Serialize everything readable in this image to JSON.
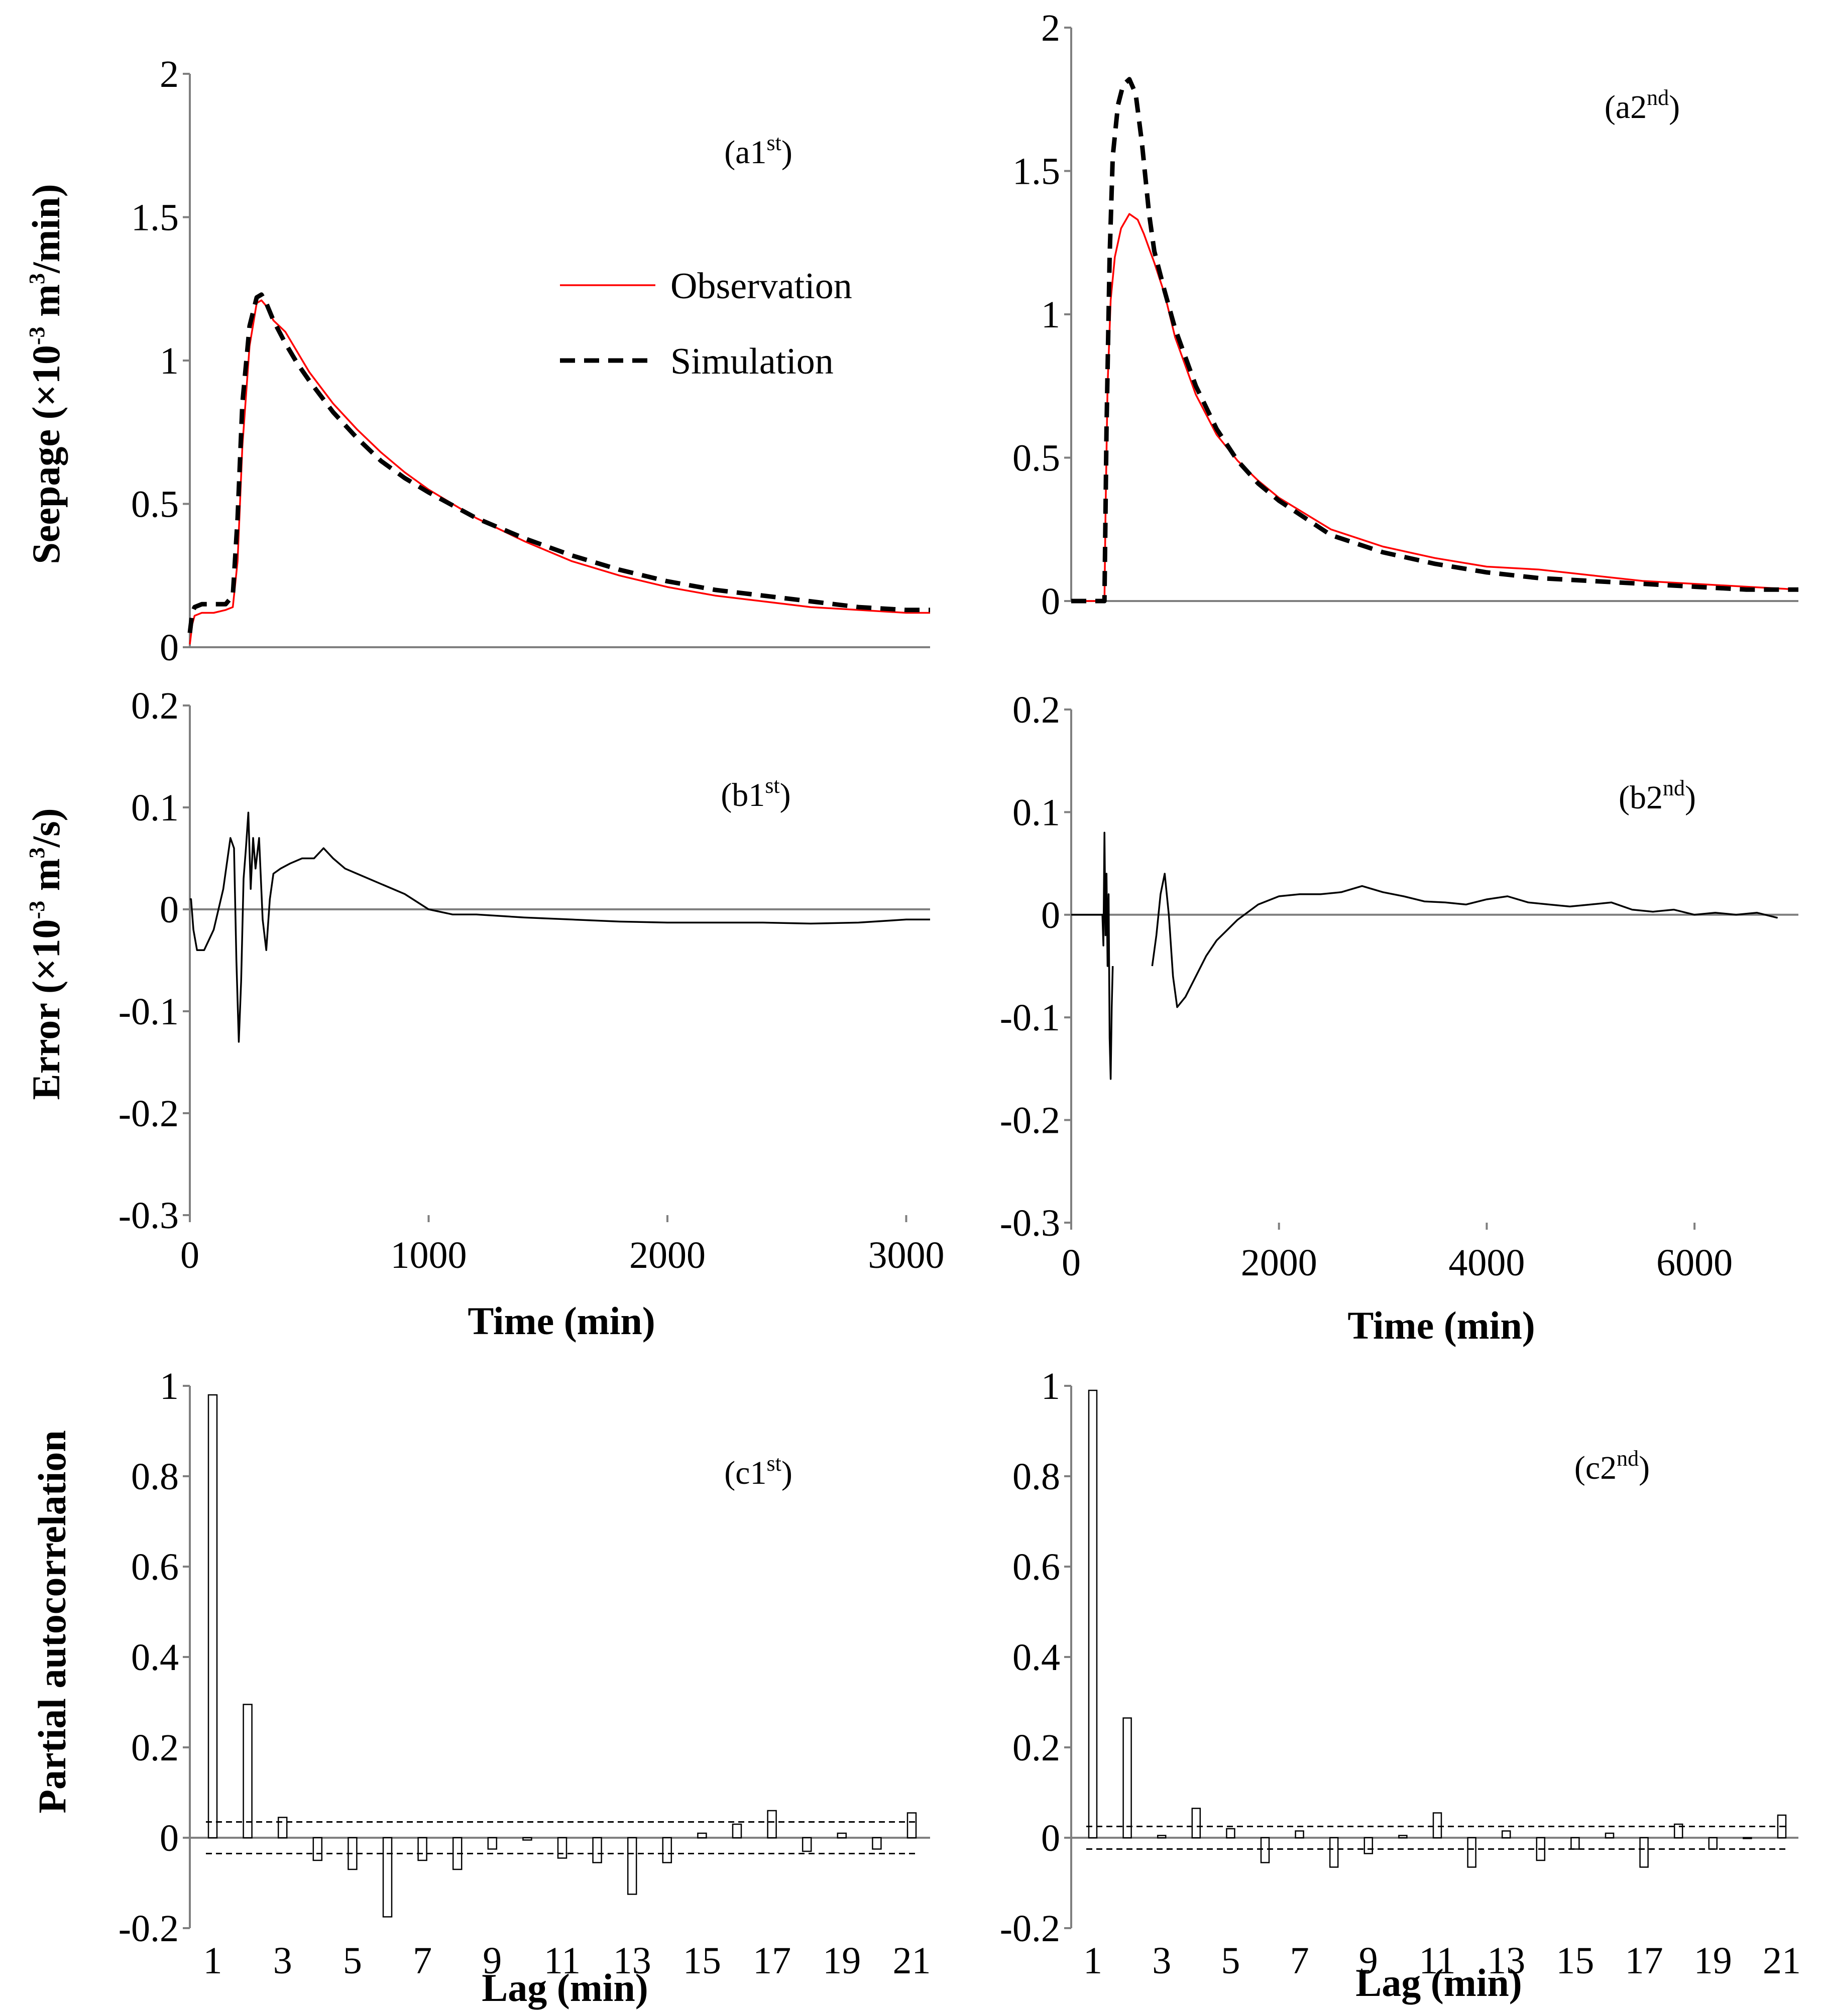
{
  "figure": {
    "ylabels": {
      "seepage": [
        "Seepage (×10",
        "-3",
        " m",
        "3",
        "/min)"
      ],
      "error": [
        "Error (×10",
        "-3",
        " m",
        "3",
        "/s)"
      ],
      "pacf": "Partial autocorrelation"
    },
    "xlabels": {
      "time": "Time (min)",
      "lag": "Lag (min)"
    },
    "colors": {
      "observation": "#ff0000",
      "simulation": "#000000",
      "error": "#000000",
      "axis": "#7f7f7f"
    }
  },
  "chart_data": [
    {
      "id": "a1",
      "type": "line",
      "panel_label": [
        "(a1",
        "st",
        ")"
      ],
      "xlabel": "",
      "ylabel": "Seepage (×10-3 m3/min)",
      "xlim": [
        0,
        3100
      ],
      "ylim": [
        0,
        2
      ],
      "yticks": [
        "0",
        "0.5",
        "1",
        "1.5",
        "2"
      ],
      "xticks": [],
      "legend": {
        "placement": "top-right",
        "entries": [
          "Observation",
          "Simulation"
        ]
      },
      "series": [
        {
          "name": "Observation",
          "style": "solid-red",
          "x": [
            0,
            10,
            20,
            50,
            100,
            150,
            180,
            200,
            220,
            250,
            280,
            300,
            320,
            350,
            400,
            450,
            500,
            600,
            700,
            800,
            900,
            1000,
            1200,
            1400,
            1600,
            1800,
            2000,
            2200,
            2400,
            2600,
            2800,
            3000,
            3100
          ],
          "y": [
            0.01,
            0.08,
            0.11,
            0.12,
            0.12,
            0.13,
            0.14,
            0.3,
            0.7,
            1.05,
            1.2,
            1.21,
            1.19,
            1.14,
            1.1,
            1.03,
            0.96,
            0.85,
            0.76,
            0.68,
            0.61,
            0.55,
            0.45,
            0.37,
            0.3,
            0.25,
            0.21,
            0.18,
            0.16,
            0.14,
            0.13,
            0.12,
            0.12
          ]
        },
        {
          "name": "Simulation",
          "style": "dashed-black",
          "x": [
            0,
            10,
            20,
            50,
            100,
            150,
            180,
            200,
            220,
            250,
            280,
            300,
            320,
            350,
            400,
            450,
            500,
            600,
            700,
            800,
            900,
            1000,
            1200,
            1400,
            1600,
            1800,
            2000,
            2200,
            2400,
            2600,
            2800,
            3000,
            3100
          ],
          "y": [
            0.05,
            0.12,
            0.14,
            0.15,
            0.15,
            0.15,
            0.18,
            0.45,
            0.85,
            1.12,
            1.22,
            1.23,
            1.2,
            1.14,
            1.06,
            0.99,
            0.93,
            0.82,
            0.73,
            0.65,
            0.59,
            0.54,
            0.45,
            0.38,
            0.32,
            0.27,
            0.23,
            0.2,
            0.18,
            0.16,
            0.14,
            0.13,
            0.13
          ]
        }
      ]
    },
    {
      "id": "a2",
      "type": "line",
      "panel_label": [
        "(a2",
        "nd",
        ")"
      ],
      "xlabel": "",
      "ylabel": "",
      "xlim": [
        0,
        7000
      ],
      "ylim": [
        0,
        2
      ],
      "yticks": [
        "0",
        "0.5",
        "1",
        "1.5",
        "2"
      ],
      "xticks": [],
      "series": [
        {
          "name": "Observation",
          "style": "solid-red",
          "x": [
            0,
            300,
            320,
            330,
            350,
            380,
            420,
            480,
            560,
            640,
            700,
            800,
            900,
            1000,
            1200,
            1400,
            1600,
            1800,
            2000,
            2500,
            3000,
            3500,
            4000,
            4500,
            5000,
            5500,
            6000,
            6500,
            7000
          ],
          "y": [
            0,
            0,
            0,
            0.3,
            0.75,
            1.05,
            1.2,
            1.3,
            1.35,
            1.33,
            1.28,
            1.18,
            1.07,
            0.92,
            0.72,
            0.58,
            0.49,
            0.42,
            0.36,
            0.25,
            0.19,
            0.15,
            0.12,
            0.11,
            0.09,
            0.07,
            0.06,
            0.05,
            0.04
          ]
        },
        {
          "name": "Simulation",
          "style": "dashed-black",
          "x": [
            0,
            300,
            320,
            340,
            370,
            400,
            450,
            500,
            560,
            620,
            680,
            750,
            800,
            900,
            1000,
            1200,
            1400,
            1600,
            1800,
            2000,
            2500,
            3000,
            3500,
            4000,
            4500,
            5000,
            5500,
            6000,
            6500,
            7000
          ],
          "y": [
            0,
            0,
            0,
            0.6,
            1.2,
            1.55,
            1.73,
            1.8,
            1.82,
            1.77,
            1.6,
            1.35,
            1.22,
            1.08,
            0.95,
            0.75,
            0.6,
            0.49,
            0.41,
            0.35,
            0.23,
            0.17,
            0.13,
            0.1,
            0.08,
            0.07,
            0.06,
            0.05,
            0.04,
            0.04
          ]
        }
      ]
    },
    {
      "id": "b1",
      "type": "line",
      "panel_label": [
        "(b1",
        "st",
        ")"
      ],
      "xlabel": "Time (min)",
      "ylabel": "Error (×10-3 m3/s)",
      "xlim": [
        0,
        3100
      ],
      "ylim": [
        -0.3,
        0.2
      ],
      "yticks": [
        "-0.3",
        "-0.2",
        "-0.1",
        "0",
        "0.1",
        "0.2"
      ],
      "xticks": [
        "0",
        "1000",
        "2000",
        "3000"
      ],
      "series": [
        {
          "name": "Error",
          "style": "solid-black",
          "x": [
            0,
            5,
            15,
            30,
            60,
            100,
            140,
            170,
            185,
            195,
            205,
            215,
            225,
            235,
            245,
            255,
            265,
            275,
            290,
            305,
            320,
            335,
            350,
            380,
            420,
            470,
            520,
            560,
            600,
            650,
            700,
            800,
            900,
            1000,
            1100,
            1200,
            1400,
            1600,
            1800,
            2000,
            2200,
            2400,
            2600,
            2800,
            3000,
            3100
          ],
          "y": [
            0.01,
            0.01,
            -0.02,
            -0.04,
            -0.04,
            -0.02,
            0.02,
            0.07,
            0.06,
            -0.05,
            -0.13,
            -0.07,
            0.03,
            0.06,
            0.095,
            0.02,
            0.07,
            0.04,
            0.07,
            -0.01,
            -0.04,
            0.01,
            0.035,
            0.04,
            0.045,
            0.05,
            0.05,
            0.06,
            0.05,
            0.04,
            0.035,
            0.025,
            0.015,
            0.0,
            -0.005,
            -0.005,
            -0.008,
            -0.01,
            -0.012,
            -0.013,
            -0.013,
            -0.013,
            -0.014,
            -0.013,
            -0.01,
            -0.01
          ]
        }
      ]
    },
    {
      "id": "b2",
      "type": "line",
      "panel_label": [
        "(b2",
        "nd",
        ")"
      ],
      "xlabel": "Time (min)",
      "ylabel": "",
      "xlim": [
        0,
        7000
      ],
      "ylim": [
        -0.3,
        0.2
      ],
      "yticks": [
        "-0.3",
        "-0.2",
        "-0.1",
        "0",
        "0.1",
        "0.2"
      ],
      "xticks": [
        "0",
        "2000",
        "4000",
        "6000"
      ],
      "series": [
        {
          "name": "Error",
          "style": "solid-black",
          "x": [
            0,
            300,
            310,
            320,
            330,
            340,
            350,
            360,
            370,
            380,
            390,
            400
          ],
          "y": [
            0,
            0,
            -0.03,
            0.08,
            -0.02,
            0.04,
            -0.05,
            0.02,
            -0.12,
            -0.16,
            -0.09,
            -0.05
          ]
        },
        {
          "name": "Error-2",
          "style": "solid-black",
          "x": [
            780,
            820,
            860,
            900,
            940,
            980,
            1020,
            1100,
            1200,
            1300,
            1400,
            1500,
            1600,
            1800,
            2000,
            2200,
            2400,
            2600,
            2800,
            3000,
            3200,
            3400,
            3600,
            3800,
            4000,
            4200,
            4400,
            4600,
            4800,
            5000,
            5200,
            5400,
            5600,
            5800,
            6000,
            6200,
            6400,
            6600,
            6800
          ],
          "y": [
            -0.05,
            -0.02,
            0.02,
            0.04,
            0.0,
            -0.06,
            -0.09,
            -0.08,
            -0.06,
            -0.04,
            -0.025,
            -0.015,
            -0.005,
            0.01,
            0.018,
            0.02,
            0.02,
            0.022,
            0.028,
            0.022,
            0.018,
            0.013,
            0.012,
            0.01,
            0.015,
            0.018,
            0.012,
            0.01,
            0.008,
            0.01,
            0.012,
            0.005,
            0.003,
            0.005,
            0.0,
            0.002,
            0.0,
            0.002,
            -0.003
          ]
        }
      ]
    },
    {
      "id": "c1",
      "type": "bar",
      "panel_label": [
        "(c1",
        "st",
        ")"
      ],
      "xlabel": "Lag (min)",
      "ylabel": "Partial autocorrelation",
      "ylim": [
        -0.2,
        1
      ],
      "yticks": [
        "-0.2",
        "0",
        "0.2",
        "0.4",
        "0.6",
        "0.8",
        "1"
      ],
      "categories": [
        "1",
        "2",
        "3",
        "4",
        "5",
        "6",
        "7",
        "8",
        "9",
        "10",
        "11",
        "12",
        "13",
        "14",
        "15",
        "16",
        "17",
        "18",
        "19",
        "20",
        "21"
      ],
      "xticks": [
        "1",
        "3",
        "5",
        "7",
        "9",
        "11",
        "13",
        "15",
        "17",
        "19",
        "21"
      ],
      "values": [
        0.98,
        0.295,
        0.045,
        -0.05,
        -0.07,
        -0.175,
        -0.05,
        -0.07,
        -0.025,
        -0.005,
        -0.045,
        -0.055,
        -0.125,
        -0.055,
        0.01,
        0.03,
        0.06,
        -0.03,
        0.01,
        -0.025,
        0.055
      ],
      "confidence_bounds": [
        0.035,
        -0.035
      ]
    },
    {
      "id": "c2",
      "type": "bar",
      "panel_label": [
        "(c2",
        "nd",
        ")"
      ],
      "xlabel": "Lag (min)",
      "ylabel": "",
      "ylim": [
        -0.2,
        1
      ],
      "yticks": [
        "-0.2",
        "0",
        "0.2",
        "0.4",
        "0.6",
        "0.8",
        "1"
      ],
      "categories": [
        "1",
        "2",
        "3",
        "4",
        "5",
        "6",
        "7",
        "8",
        "9",
        "10",
        "11",
        "12",
        "13",
        "14",
        "15",
        "16",
        "17",
        "18",
        "19",
        "20",
        "21"
      ],
      "xticks": [
        "1",
        "3",
        "5",
        "7",
        "9",
        "11",
        "13",
        "15",
        "17",
        "19",
        "21"
      ],
      "values": [
        0.99,
        0.265,
        0.005,
        0.065,
        0.02,
        -0.055,
        0.015,
        -0.065,
        -0.035,
        0.005,
        0.055,
        -0.065,
        0.015,
        -0.05,
        -0.025,
        0.01,
        -0.065,
        0.03,
        -0.025,
        0.0,
        0.05
      ],
      "confidence_bounds": [
        0.025,
        -0.025
      ]
    }
  ]
}
